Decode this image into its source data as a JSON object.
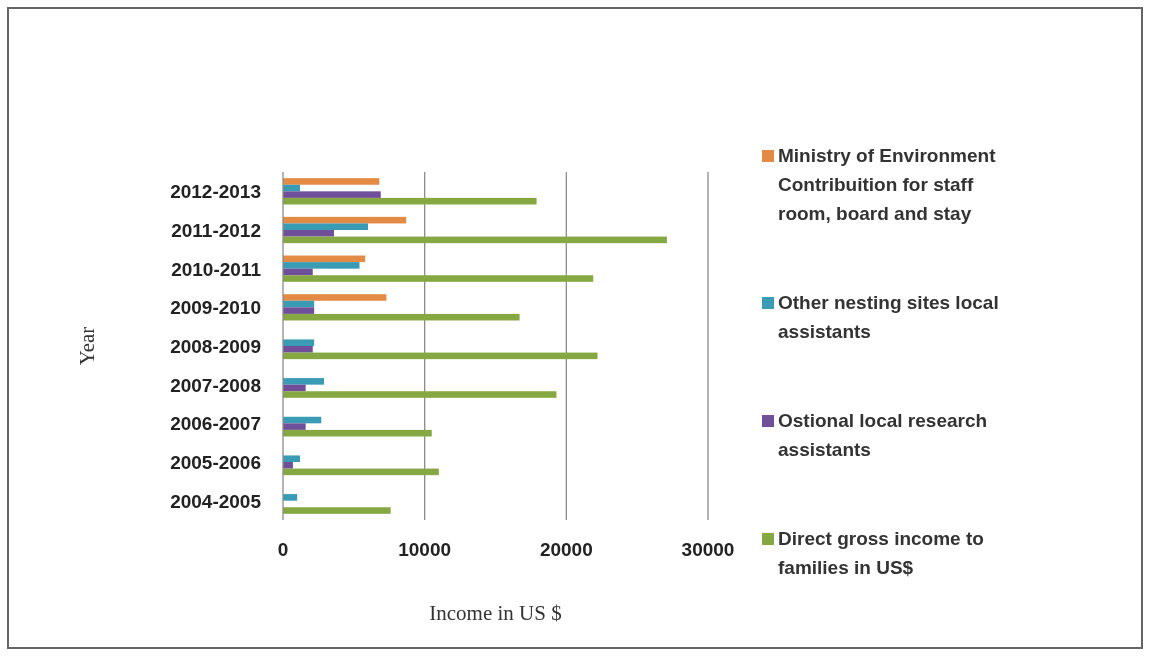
{
  "chart_data": {
    "type": "bar",
    "orientation": "horizontal",
    "xlabel": "Income in US $",
    "ylabel": "Year",
    "categories": [
      "2012-2013",
      "2011-2012",
      "2010-2011",
      "2009-2010",
      "2008-2009",
      "2007-2008",
      "2006-2007",
      "2005-2006",
      "2004-2005"
    ],
    "series": [
      {
        "name": "Ministry of Environment Contribuition for staff room, board and stay",
        "color": "#e38b45",
        "values": [
          6800,
          8700,
          5800,
          7300,
          null,
          null,
          null,
          null,
          null
        ]
      },
      {
        "name": "Other nesting sites local assistants",
        "color": "#3a9bb5",
        "values": [
          1200,
          6000,
          5400,
          2200,
          2200,
          2900,
          2700,
          1200,
          1000
        ]
      },
      {
        "name": "Ostional local research assistants",
        "color": "#6f4f9a",
        "values": [
          6900,
          3600,
          2100,
          2200,
          2100,
          1600,
          1600,
          700,
          null
        ]
      },
      {
        "name": "Direct gross income to families in US$",
        "color": "#86a843",
        "values": [
          17900,
          27100,
          21900,
          16700,
          22200,
          19300,
          10500,
          11000,
          7600
        ]
      }
    ],
    "xlim": [
      0,
      30000
    ],
    "xticks": [
      0,
      10000,
      20000,
      30000
    ],
    "grid": "x",
    "legend": "right"
  }
}
